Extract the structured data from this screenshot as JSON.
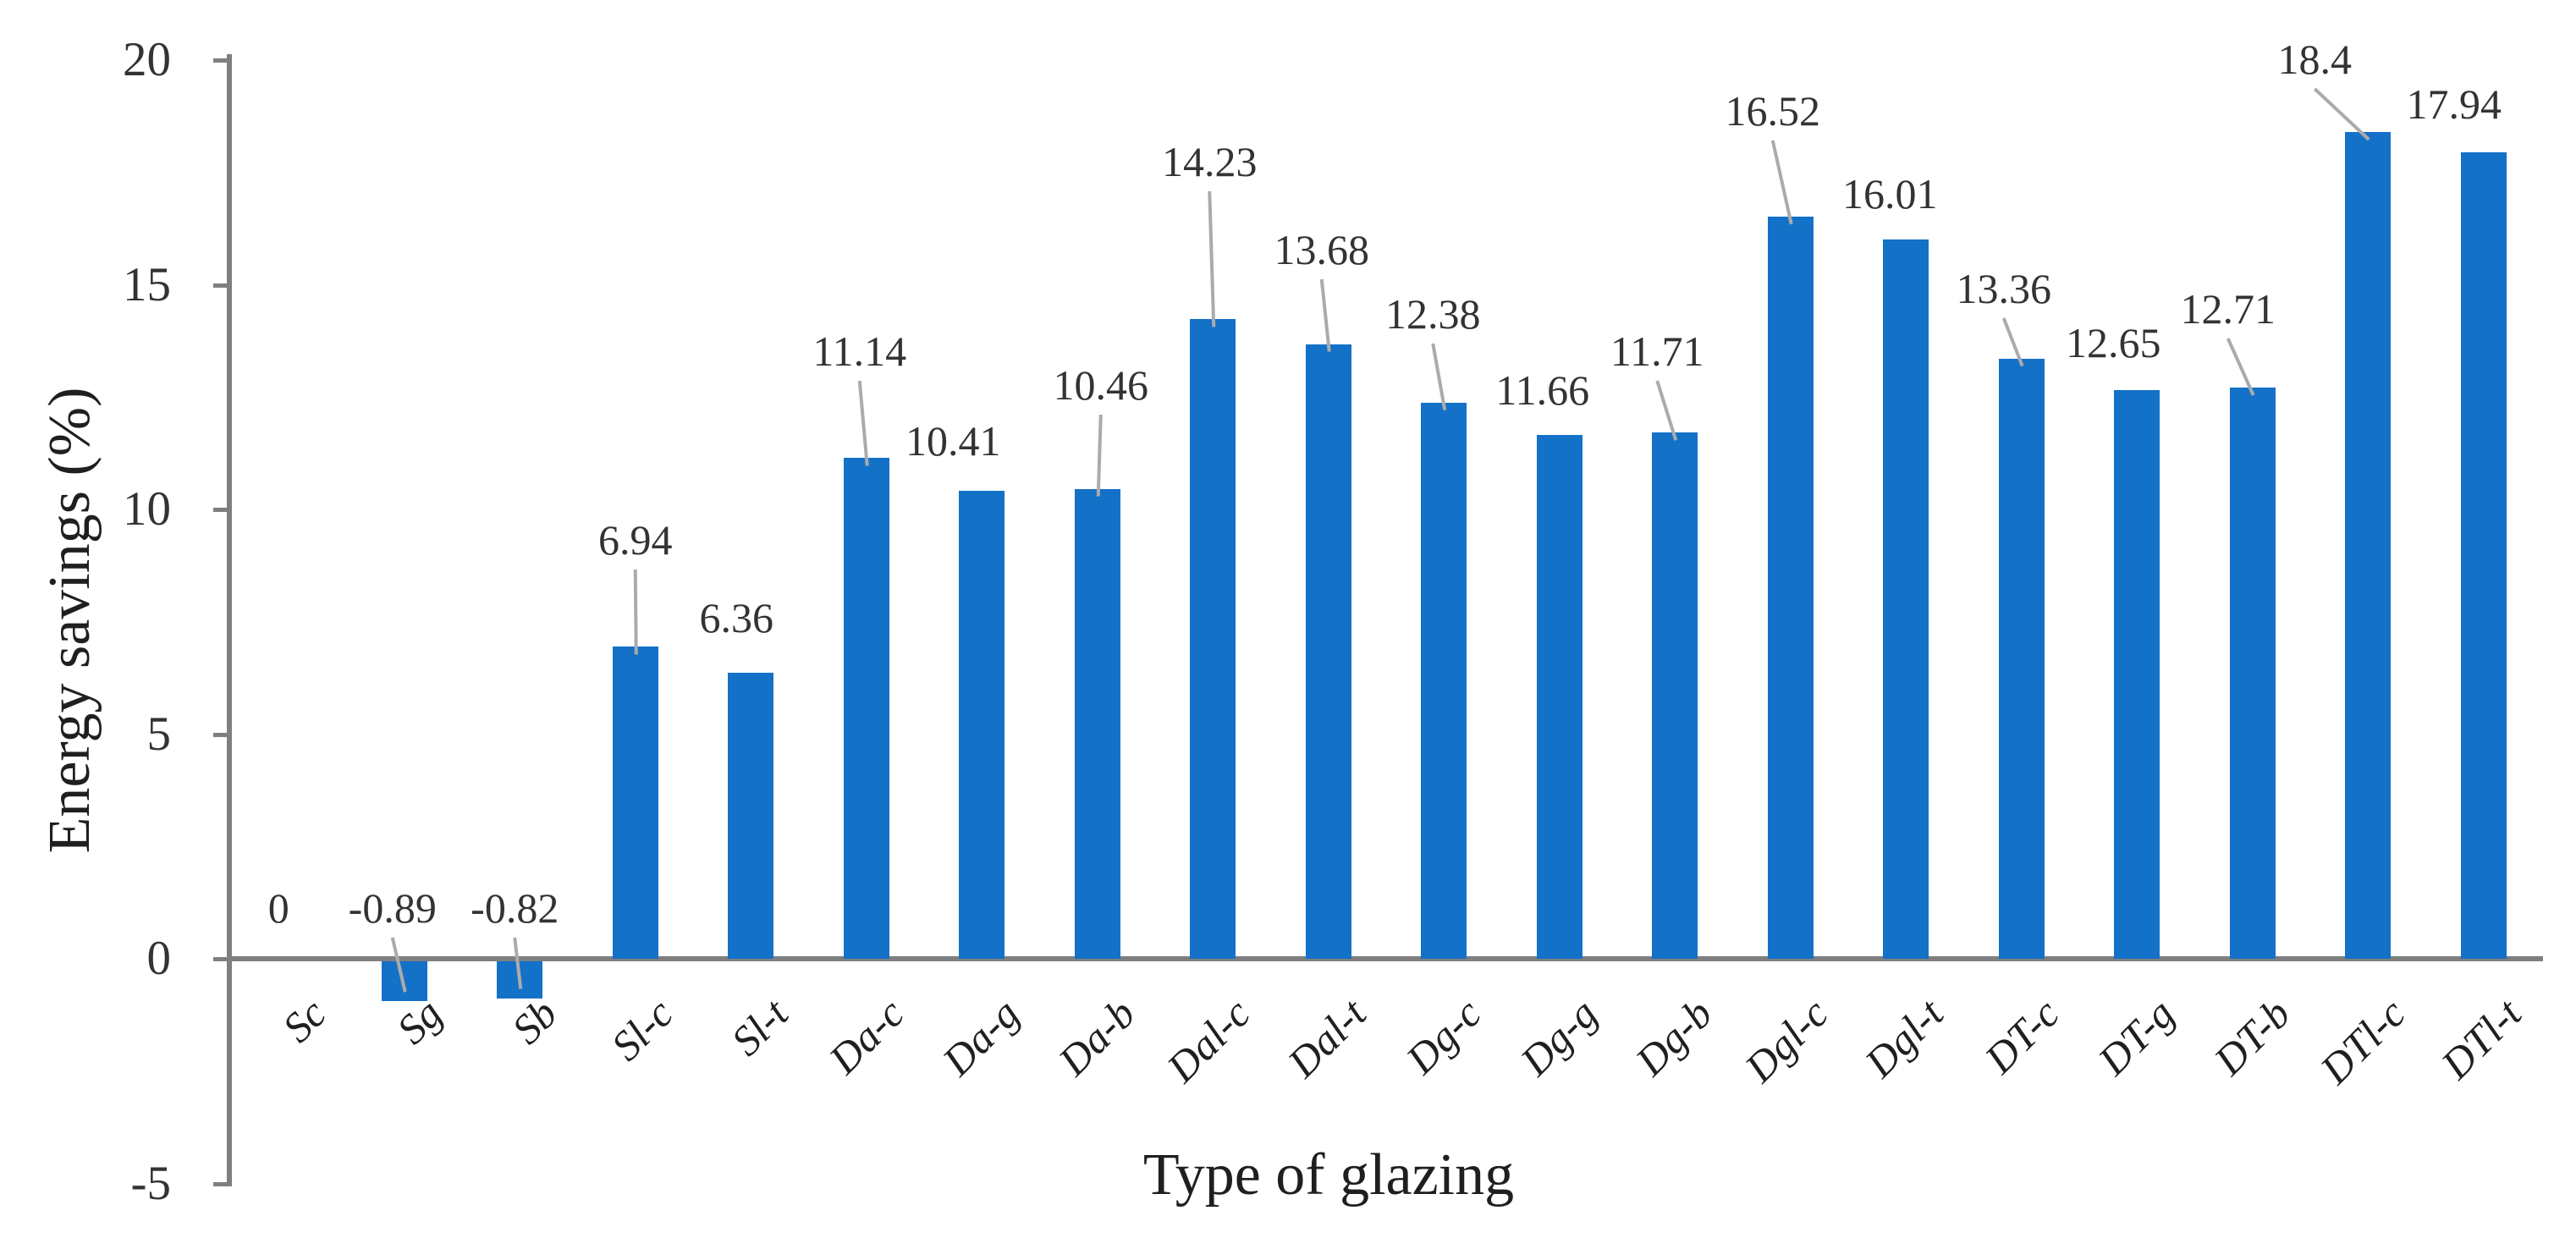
{
  "chart_data": {
    "type": "bar",
    "title": "",
    "xlabel": "Type of glazing",
    "ylabel": "Energy savings (%)",
    "ylim": [
      -5,
      20
    ],
    "yticks": [
      20,
      15,
      10,
      5,
      0,
      -5
    ],
    "grid": false,
    "legend": false,
    "background_color": "#ffffff",
    "bar_color": "#1471c8",
    "axis_color": "#7f7f7f",
    "leader_line_color": "#ababab",
    "text_color": "#333333",
    "categories": [
      "Sc",
      "Sg",
      "Sb",
      "Sl-c",
      "Sl-t",
      "Da-c",
      "Da-g",
      "Da-b",
      "Dal-c",
      "Dal-t",
      "Dg-c",
      "Dg-g",
      "Dg-b",
      "Dgl-c",
      "Dgl-t",
      "DT-c",
      "DT-g",
      "DT-b",
      "DTl-c",
      "DTl-t"
    ],
    "values": [
      0,
      -0.89,
      -0.82,
      6.94,
      6.36,
      11.14,
      10.41,
      10.46,
      14.23,
      13.68,
      12.38,
      11.66,
      11.71,
      16.52,
      16.01,
      13.36,
      12.65,
      12.71,
      18.4,
      17.94
    ],
    "data_labels": [
      "0",
      "-0.89",
      "-0.82",
      "6.94",
      "6.36",
      "11.14",
      "10.41",
      "10.46",
      "14.23",
      "13.68",
      "12.38",
      "11.66",
      "11.71",
      "16.52",
      "16.01",
      "13.36",
      "12.65",
      "12.71",
      "18.4",
      "17.94"
    ],
    "label_layout": [
      {
        "ly": 1100,
        "dx": -12,
        "leader": false
      },
      {
        "ly": 1100,
        "dx": -14,
        "leader": true
      },
      {
        "ly": 1100,
        "dx": -6,
        "leader": true
      },
      {
        "ly": 665,
        "dx": 0,
        "leader": true
      },
      {
        "ly": 757,
        "dx": -17,
        "leader": false
      },
      {
        "ly": 442,
        "dx": -8,
        "leader": true
      },
      {
        "ly": 548,
        "dx": -34,
        "leader": false
      },
      {
        "ly": 482,
        "dx": 4,
        "leader": true
      },
      {
        "ly": 218,
        "dx": -4,
        "leader": true
      },
      {
        "ly": 322,
        "dx": -8,
        "leader": true
      },
      {
        "ly": 398,
        "dx": -13,
        "leader": true
      },
      {
        "ly": 488,
        "dx": -20,
        "leader": false
      },
      {
        "ly": 442,
        "dx": -21,
        "leader": true
      },
      {
        "ly": 158,
        "dx": -21,
        "leader": true
      },
      {
        "ly": 256,
        "dx": -19,
        "leader": false
      },
      {
        "ly": 368,
        "dx": -21,
        "leader": true
      },
      {
        "ly": 432,
        "dx": -28,
        "leader": false
      },
      {
        "ly": 392,
        "dx": -29,
        "leader": true
      },
      {
        "ly": 97,
        "dx": -63,
        "leader": true
      },
      {
        "ly": 150,
        "dx": -35,
        "leader": false
      }
    ]
  }
}
